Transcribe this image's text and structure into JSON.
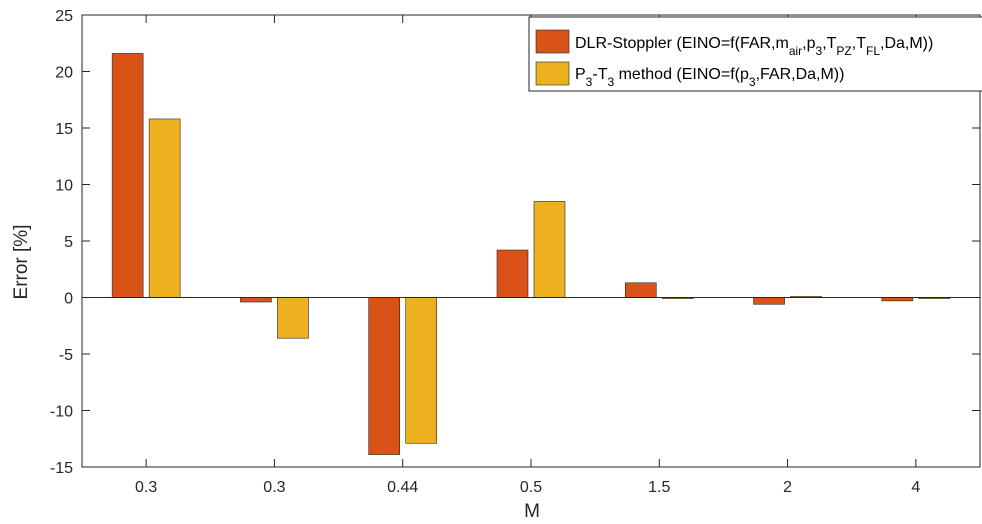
{
  "chart_data": {
    "type": "bar",
    "xlabel": "M",
    "ylabel": "Error [%]",
    "ylim": [
      -15,
      25
    ],
    "yticks": [
      -15,
      -10,
      -5,
      0,
      5,
      10,
      15,
      20,
      25
    ],
    "categories": [
      "0.3",
      "0.3",
      "0.44",
      "0.5",
      "1.5",
      "2",
      "4"
    ],
    "series": [
      {
        "name": "DLR-Stoppler (EINO=f(FAR,m_air,p_3,T_PZ,T_FL,Da,M))",
        "color": "#D95319",
        "values": [
          21.6,
          -0.4,
          -13.9,
          4.2,
          1.3,
          -0.6,
          -0.3
        ]
      },
      {
        "name": "P_3-T_3 method (EINO=f(p_3,FAR,Da,M))",
        "color": "#EDB120",
        "values": [
          15.8,
          -3.6,
          -12.9,
          8.5,
          -0.1,
          0.1,
          -0.1
        ]
      }
    ],
    "legend_position": "top-right",
    "grid": false
  }
}
